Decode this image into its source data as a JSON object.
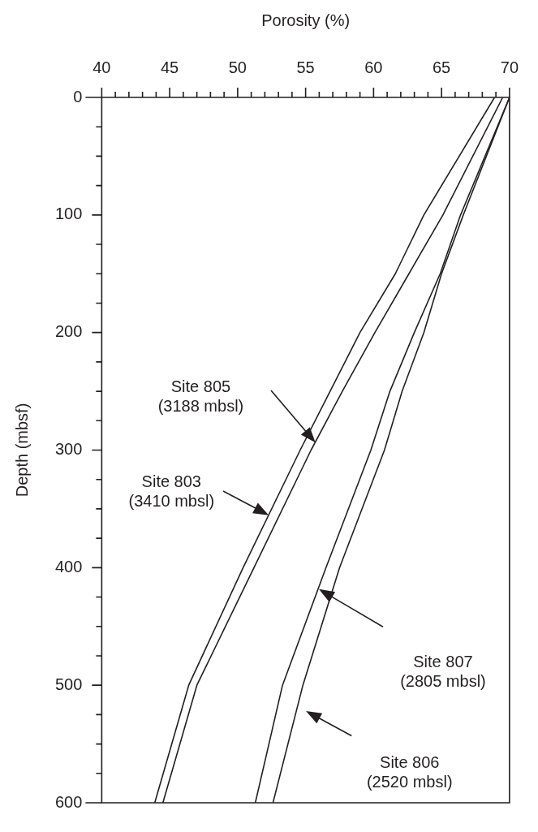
{
  "chart_data": {
    "type": "line",
    "xlabel": "Porosity (%)",
    "ylabel": "Depth (mbsf)",
    "xlim": [
      40,
      70
    ],
    "ylim": [
      600,
      0
    ],
    "xticks": [
      40,
      {
        "value": 41,
        "label": null
      },
      {
        "value": 42,
        "label": null
      },
      {
        "value": 43,
        "label": null
      },
      {
        "value": 44,
        "label": null
      },
      45,
      {
        "value": 46,
        "label": null
      },
      {
        "value": 47,
        "label": null
      },
      {
        "value": 48,
        "label": null
      },
      {
        "value": 49,
        "label": null
      },
      50,
      {
        "value": 51,
        "label": null
      },
      {
        "value": 52,
        "label": null
      },
      {
        "value": 53,
        "label": null
      },
      {
        "value": 54,
        "label": null
      },
      55,
      {
        "value": 56,
        "label": null
      },
      {
        "value": 57,
        "label": null
      },
      {
        "value": 58,
        "label": null
      },
      {
        "value": 59,
        "label": null
      },
      60,
      {
        "value": 61,
        "label": null
      },
      {
        "value": 62,
        "label": null
      },
      {
        "value": 63,
        "label": null
      },
      {
        "value": 64,
        "label": null
      },
      65,
      {
        "value": 66,
        "label": null
      },
      {
        "value": 67,
        "label": null
      },
      {
        "value": 68,
        "label": null
      },
      {
        "value": 69,
        "label": null
      },
      70
    ],
    "yticks": [
      0,
      {
        "value": 25,
        "label": null
      },
      {
        "value": 50,
        "label": null
      },
      {
        "value": 75,
        "label": null
      },
      100,
      {
        "value": 125,
        "label": null
      },
      {
        "value": 150,
        "label": null
      },
      {
        "value": 175,
        "label": null
      },
      200,
      {
        "value": 225,
        "label": null
      },
      {
        "value": 250,
        "label": null
      },
      {
        "value": 275,
        "label": null
      },
      300,
      {
        "value": 325,
        "label": null
      },
      {
        "value": 350,
        "label": null
      },
      {
        "value": 375,
        "label": null
      },
      400,
      {
        "value": 425,
        "label": null
      },
      {
        "value": 450,
        "label": null
      },
      {
        "value": 475,
        "label": null
      },
      500,
      {
        "value": 525,
        "label": null
      },
      {
        "value": 550,
        "label": null
      },
      {
        "value": 575,
        "label": null
      },
      600
    ],
    "grid": false,
    "legend": false,
    "marker": "none",
    "line_style": "solid",
    "series": [
      {
        "color": "#231f20",
        "x": [
          68.9,
          63.7,
          61.6,
          59.0,
          56.8,
          54.6,
          50.4,
          46.4,
          43.9
        ],
        "values": [
          0,
          100,
          150,
          200,
          250,
          300,
          400,
          500,
          600
        ]
      },
      {
        "color": "#231f20",
        "x": [
          69.5,
          65.1,
          62.6,
          60.1,
          57.7,
          55.4,
          51.2,
          47.0,
          44.5
        ],
        "values": [
          0,
          100,
          150,
          200,
          250,
          300,
          400,
          500,
          600
        ]
      },
      {
        "color": "#231f20",
        "x": [
          70.0,
          66.4,
          64.9,
          63.0,
          61.2,
          59.8,
          56.5,
          53.3,
          51.3
        ],
        "values": [
          0,
          100,
          150,
          200,
          250,
          300,
          400,
          500,
          600
        ]
      },
      {
        "color": "#231f20",
        "x": [
          70.0,
          66.6,
          65.0,
          63.7,
          62.1,
          60.8,
          57.5,
          54.8,
          52.6
        ],
        "values": [
          0,
          100,
          150,
          200,
          250,
          300,
          400,
          500,
          600
        ]
      }
    ],
    "annotations": [
      "Site 805\n(3188 mbsl)",
      "Site 803\n(3410 mbsl)",
      "Site 807\n(2805 mbsl)",
      "Site 806\n(2520 mbsl)"
    ]
  }
}
